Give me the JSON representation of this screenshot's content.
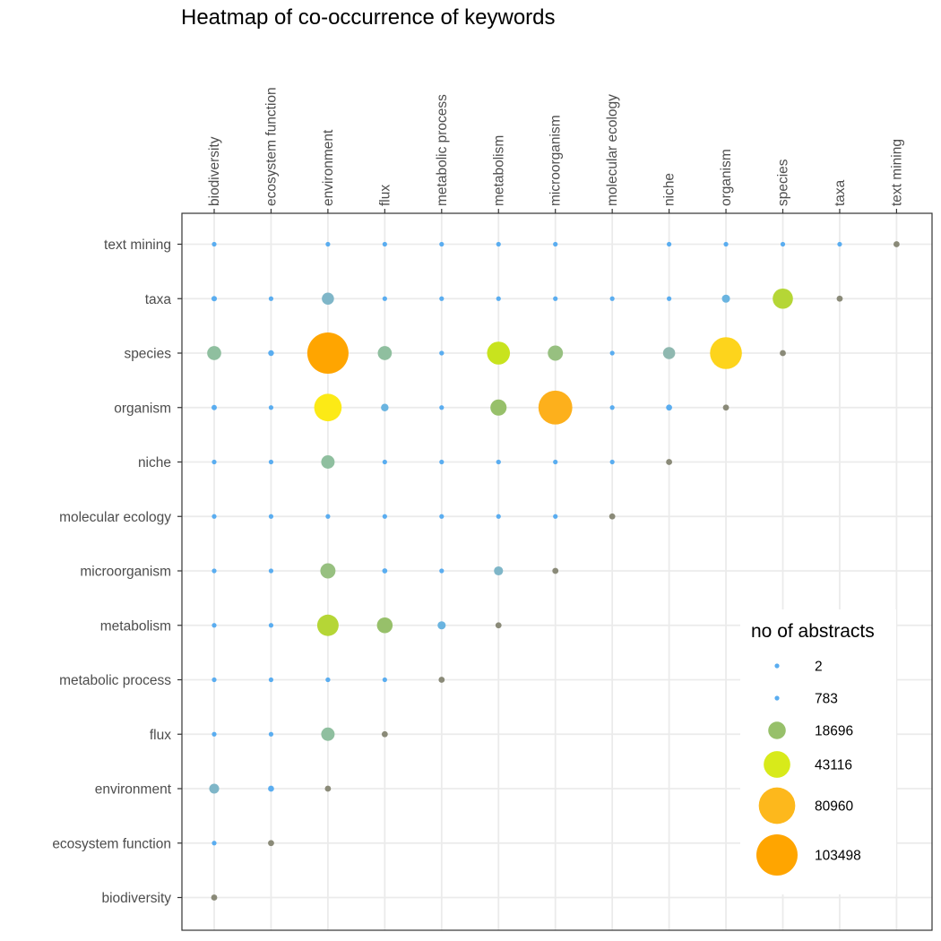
{
  "chart_data": {
    "type": "scatter",
    "title": "Heatmap of co-occurrence of keywords",
    "xlabel": "",
    "ylabel": "",
    "x_categories": [
      "biodiversity",
      "ecosystem function",
      "environment",
      "flux",
      "metabolic process",
      "metabolism",
      "microorganism",
      "molecular ecology",
      "niche",
      "organism",
      "species",
      "taxa",
      "text mining"
    ],
    "y_categories": [
      "biodiversity",
      "ecosystem function",
      "environment",
      "flux",
      "metabolic process",
      "metabolism",
      "microorganism",
      "molecular ecology",
      "niche",
      "organism",
      "species",
      "taxa",
      "text mining"
    ],
    "grid": true,
    "legend": {
      "title": "no of abstracts",
      "position": "right",
      "entries": [
        {
          "label": "2",
          "value": 2,
          "color": "#5AADF0"
        },
        {
          "label": "783",
          "value": 783,
          "color": "#5AADF0"
        },
        {
          "label": "18696",
          "value": 18696,
          "color": "#97C06A"
        },
        {
          "label": "43116",
          "value": 43116,
          "color": "#D8EA1A"
        },
        {
          "label": "80960",
          "value": 80960,
          "color": "#FDB81C"
        },
        {
          "label": "103498",
          "value": 103498,
          "color": "#FFA500"
        }
      ]
    },
    "diagonal_color": "#8A8A78",
    "points": [
      {
        "x": "biodiversity",
        "y": "biodiversity",
        "value": 0,
        "diagonal": true
      },
      {
        "x": "biodiversity",
        "y": "ecosystem function",
        "value": 1200,
        "color": "#5AADF0"
      },
      {
        "x": "ecosystem function",
        "y": "ecosystem function",
        "value": 0,
        "diagonal": true
      },
      {
        "x": "biodiversity",
        "y": "environment",
        "value": 6000,
        "color": "#7FB6C8"
      },
      {
        "x": "ecosystem function",
        "y": "environment",
        "value": 2200,
        "color": "#5AADF0"
      },
      {
        "x": "environment",
        "y": "environment",
        "value": 0,
        "diagonal": true
      },
      {
        "x": "biodiversity",
        "y": "flux",
        "value": 400,
        "color": "#5AADF0"
      },
      {
        "x": "ecosystem function",
        "y": "flux",
        "value": 500,
        "color": "#5AADF0"
      },
      {
        "x": "environment",
        "y": "flux",
        "value": 11000,
        "color": "#8FBF9F"
      },
      {
        "x": "flux",
        "y": "flux",
        "value": 0,
        "diagonal": true
      },
      {
        "x": "biodiversity",
        "y": "metabolic process",
        "value": 80,
        "color": "#5AADF0"
      },
      {
        "x": "ecosystem function",
        "y": "metabolic process",
        "value": 80,
        "color": "#5AADF0"
      },
      {
        "x": "environment",
        "y": "metabolic process",
        "value": 1400,
        "color": "#5AADF0"
      },
      {
        "x": "flux",
        "y": "metabolic process",
        "value": 800,
        "color": "#5AADF0"
      },
      {
        "x": "metabolic process",
        "y": "metabolic process",
        "value": 0,
        "diagonal": true
      },
      {
        "x": "biodiversity",
        "y": "metabolism",
        "value": 200,
        "color": "#5AADF0"
      },
      {
        "x": "ecosystem function",
        "y": "metabolism",
        "value": 200,
        "color": "#5AADF0"
      },
      {
        "x": "environment",
        "y": "metabolism",
        "value": 28000,
        "color": "#B5D636"
      },
      {
        "x": "flux",
        "y": "metabolism",
        "value": 15000,
        "color": "#97C06A"
      },
      {
        "x": "metabolic process",
        "y": "metabolism",
        "value": 4000,
        "color": "#6AB4E0"
      },
      {
        "x": "metabolism",
        "y": "metabolism",
        "value": 0,
        "diagonal": true
      },
      {
        "x": "biodiversity",
        "y": "microorganism",
        "value": 500,
        "color": "#5AADF0"
      },
      {
        "x": "ecosystem function",
        "y": "microorganism",
        "value": 300,
        "color": "#5AADF0"
      },
      {
        "x": "environment",
        "y": "microorganism",
        "value": 14000,
        "color": "#97C080"
      },
      {
        "x": "flux",
        "y": "microorganism",
        "value": 1600,
        "color": "#5AADF0"
      },
      {
        "x": "metabolic process",
        "y": "microorganism",
        "value": 300,
        "color": "#5AADF0"
      },
      {
        "x": "metabolism",
        "y": "microorganism",
        "value": 5000,
        "color": "#7FB6C8"
      },
      {
        "x": "microorganism",
        "y": "microorganism",
        "value": 0,
        "diagonal": true
      },
      {
        "x": "biodiversity",
        "y": "molecular ecology",
        "value": 40,
        "color": "#5AADF0"
      },
      {
        "x": "ecosystem function",
        "y": "molecular ecology",
        "value": 30,
        "color": "#5AADF0"
      },
      {
        "x": "environment",
        "y": "molecular ecology",
        "value": 150,
        "color": "#5AADF0"
      },
      {
        "x": "flux",
        "y": "molecular ecology",
        "value": 30,
        "color": "#5AADF0"
      },
      {
        "x": "metabolic process",
        "y": "molecular ecology",
        "value": 30,
        "color": "#5AADF0"
      },
      {
        "x": "metabolism",
        "y": "molecular ecology",
        "value": 50,
        "color": "#5AADF0"
      },
      {
        "x": "microorganism",
        "y": "molecular ecology",
        "value": 70,
        "color": "#5AADF0"
      },
      {
        "x": "molecular ecology",
        "y": "molecular ecology",
        "value": 0,
        "diagonal": true
      },
      {
        "x": "biodiversity",
        "y": "niche",
        "value": 700,
        "color": "#5AADF0"
      },
      {
        "x": "ecosystem function",
        "y": "niche",
        "value": 300,
        "color": "#5AADF0"
      },
      {
        "x": "environment",
        "y": "niche",
        "value": 11000,
        "color": "#8FBF9F"
      },
      {
        "x": "flux",
        "y": "niche",
        "value": 400,
        "color": "#5AADF0"
      },
      {
        "x": "metabolic process",
        "y": "niche",
        "value": 100,
        "color": "#5AADF0"
      },
      {
        "x": "metabolism",
        "y": "niche",
        "value": 1400,
        "color": "#5AADF0"
      },
      {
        "x": "microorganism",
        "y": "niche",
        "value": 900,
        "color": "#5AADF0"
      },
      {
        "x": "molecular ecology",
        "y": "niche",
        "value": 80,
        "color": "#5AADF0"
      },
      {
        "x": "niche",
        "y": "niche",
        "value": 0,
        "diagonal": true
      },
      {
        "x": "biodiversity",
        "y": "organism",
        "value": 1700,
        "color": "#5AADF0"
      },
      {
        "x": "ecosystem function",
        "y": "organism",
        "value": 500,
        "color": "#5AADF0"
      },
      {
        "x": "environment",
        "y": "organism",
        "value": 46000,
        "color": "#FCEA16"
      },
      {
        "x": "flux",
        "y": "organism",
        "value": 3500,
        "color": "#6AB4E0"
      },
      {
        "x": "metabolic process",
        "y": "organism",
        "value": 1000,
        "color": "#5AADF0"
      },
      {
        "x": "metabolism",
        "y": "organism",
        "value": 16000,
        "color": "#97C06A"
      },
      {
        "x": "microorganism",
        "y": "organism",
        "value": 70000,
        "color": "#FDB01C"
      },
      {
        "x": "molecular ecology",
        "y": "organism",
        "value": 100,
        "color": "#5AADF0"
      },
      {
        "x": "niche",
        "y": "organism",
        "value": 2200,
        "color": "#5AADF0"
      },
      {
        "x": "organism",
        "y": "organism",
        "value": 0,
        "diagonal": true
      },
      {
        "x": "biodiversity",
        "y": "species",
        "value": 12000,
        "color": "#8FBF9F"
      },
      {
        "x": "ecosystem function",
        "y": "species",
        "value": 2000,
        "color": "#5AADF0"
      },
      {
        "x": "environment",
        "y": "species",
        "value": 103498,
        "color": "#FFA500"
      },
      {
        "x": "flux",
        "y": "species",
        "value": 12000,
        "color": "#8FBF9F"
      },
      {
        "x": "metabolic process",
        "y": "species",
        "value": 1400,
        "color": "#5AADF0"
      },
      {
        "x": "metabolism",
        "y": "species",
        "value": 32000,
        "color": "#C8E31E"
      },
      {
        "x": "microorganism",
        "y": "species",
        "value": 14000,
        "color": "#97C080"
      },
      {
        "x": "molecular ecology",
        "y": "species",
        "value": 250,
        "color": "#5AADF0"
      },
      {
        "x": "niche",
        "y": "species",
        "value": 9000,
        "color": "#8FB8B0"
      },
      {
        "x": "organism",
        "y": "species",
        "value": 62000,
        "color": "#FDD41C"
      },
      {
        "x": "species",
        "y": "species",
        "value": 0,
        "diagonal": true
      },
      {
        "x": "biodiversity",
        "y": "taxa",
        "value": 1800,
        "color": "#5AADF0"
      },
      {
        "x": "ecosystem function",
        "y": "taxa",
        "value": 300,
        "color": "#5AADF0"
      },
      {
        "x": "environment",
        "y": "taxa",
        "value": 9000,
        "color": "#7FB6C8"
      },
      {
        "x": "flux",
        "y": "taxa",
        "value": 400,
        "color": "#5AADF0"
      },
      {
        "x": "metabolic process",
        "y": "taxa",
        "value": 100,
        "color": "#5AADF0"
      },
      {
        "x": "metabolism",
        "y": "taxa",
        "value": 900,
        "color": "#5AADF0"
      },
      {
        "x": "microorganism",
        "y": "taxa",
        "value": 700,
        "color": "#5AADF0"
      },
      {
        "x": "molecular ecology",
        "y": "taxa",
        "value": 80,
        "color": "#5AADF0"
      },
      {
        "x": "niche",
        "y": "taxa",
        "value": 900,
        "color": "#5AADF0"
      },
      {
        "x": "organism",
        "y": "taxa",
        "value": 4000,
        "color": "#6AB4E0"
      },
      {
        "x": "species",
        "y": "taxa",
        "value": 25000,
        "color": "#B5D636"
      },
      {
        "x": "taxa",
        "y": "taxa",
        "value": 0,
        "diagonal": true
      },
      {
        "x": "biodiversity",
        "y": "text mining",
        "value": 10,
        "color": "#5AADF0"
      },
      {
        "x": "environment",
        "y": "text mining",
        "value": 20,
        "color": "#5AADF0"
      },
      {
        "x": "flux",
        "y": "text mining",
        "value": 5,
        "color": "#5AADF0"
      },
      {
        "x": "metabolic process",
        "y": "text mining",
        "value": 5,
        "color": "#5AADF0"
      },
      {
        "x": "metabolism",
        "y": "text mining",
        "value": 10,
        "color": "#5AADF0"
      },
      {
        "x": "microorganism",
        "y": "text mining",
        "value": 8,
        "color": "#5AADF0"
      },
      {
        "x": "niche",
        "y": "text mining",
        "value": 6,
        "color": "#5AADF0"
      },
      {
        "x": "organism",
        "y": "text mining",
        "value": 20,
        "color": "#5AADF0"
      },
      {
        "x": "species",
        "y": "text mining",
        "value": 15,
        "color": "#5AADF0"
      },
      {
        "x": "taxa",
        "y": "text mining",
        "value": 8,
        "color": "#5AADF0"
      },
      {
        "x": "text mining",
        "y": "text mining",
        "value": 0,
        "diagonal": true
      }
    ]
  }
}
